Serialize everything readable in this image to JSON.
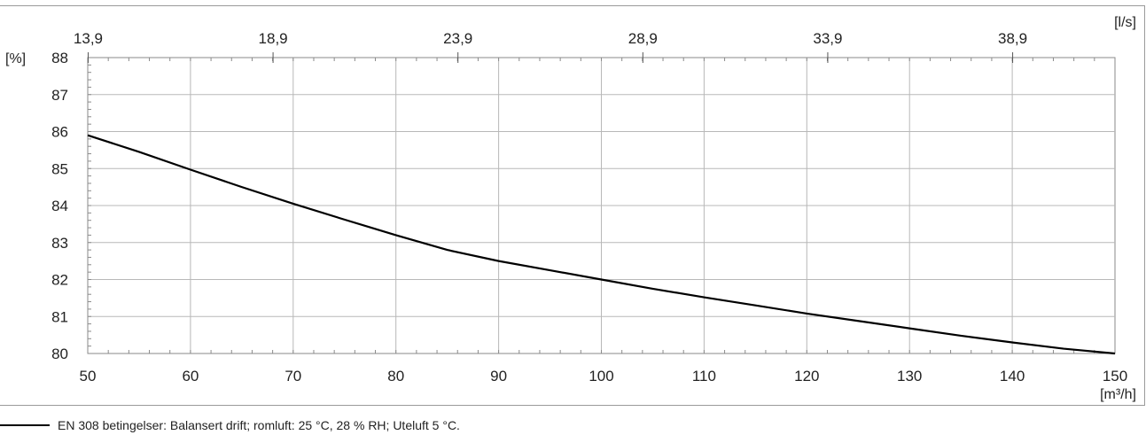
{
  "chart_data": {
    "type": "line",
    "x_axis": {
      "range": [
        50,
        150
      ],
      "ticks": [
        "50",
        "60",
        "70",
        "80",
        "90",
        "100",
        "110",
        "120",
        "130",
        "140",
        "150"
      ],
      "unit": "[m³/h]"
    },
    "x2_axis": {
      "ticks": [
        "13,9",
        "18,9",
        "23,9",
        "28,9",
        "33,9",
        "38,9"
      ],
      "unit": "[l/s]"
    },
    "y_axis": {
      "range": [
        80,
        88
      ],
      "ticks": [
        "80",
        "81",
        "82",
        "83",
        "84",
        "85",
        "86",
        "87",
        "88"
      ],
      "unit": "[%]"
    },
    "grid": true,
    "series": [
      {
        "name": "EN 308 betingelser: Balansert drift; romluft: 25 °C, 28 % RH; Uteluft 5 °C.",
        "color": "#000000",
        "x": [
          50,
          55,
          60,
          65,
          70,
          75,
          80,
          85,
          90,
          95,
          100,
          105,
          110,
          115,
          120,
          125,
          130,
          135,
          140,
          145,
          150
        ],
        "y": [
          85.9,
          85.45,
          84.97,
          84.5,
          84.05,
          83.62,
          83.2,
          82.8,
          82.5,
          82.25,
          82.0,
          81.75,
          81.52,
          81.3,
          81.08,
          80.88,
          80.68,
          80.48,
          80.3,
          80.13,
          80.0
        ]
      }
    ]
  }
}
